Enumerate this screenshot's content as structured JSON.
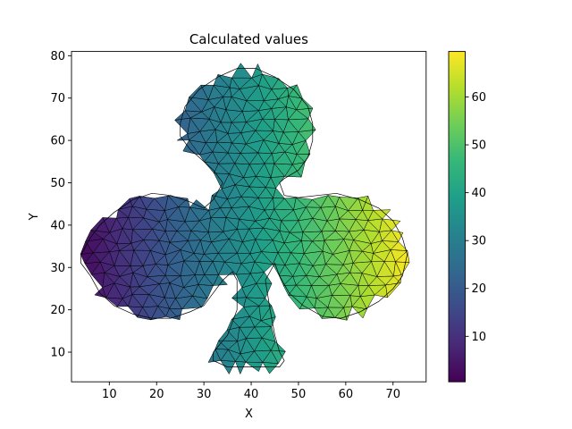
{
  "chart_data": {
    "type": "heatmap",
    "plot_kind": "triangulated mesh (tripcolor) with triangle edges",
    "title": "Calculated values",
    "xlabel": "X",
    "ylabel": "Y",
    "xlim": [
      2,
      77
    ],
    "ylim": [
      3,
      81
    ],
    "xticks": [
      10,
      20,
      30,
      40,
      50,
      60,
      70
    ],
    "yticks": [
      10,
      20,
      30,
      40,
      50,
      60,
      70,
      80
    ],
    "colorbar": {
      "cmap": "viridis",
      "range": [
        0.5,
        69.5
      ],
      "ticks": [
        10,
        20,
        30,
        40,
        50,
        60
      ]
    },
    "value_field": "value increases roughly linearly with X (about 0.8 at X=3 up to about 69 at X=73)",
    "shape_boundary": [
      [
        4,
        33
      ],
      [
        6,
        37
      ],
      [
        8,
        40
      ],
      [
        11,
        43
      ],
      [
        15,
        46
      ],
      [
        19,
        47.5
      ],
      [
        23,
        47
      ],
      [
        27,
        45.5
      ],
      [
        30,
        44
      ],
      [
        32,
        46
      ],
      [
        34,
        50
      ],
      [
        32,
        53
      ],
      [
        30,
        55
      ],
      [
        27,
        58
      ],
      [
        25,
        61
      ],
      [
        25,
        64
      ],
      [
        26,
        68
      ],
      [
        29,
        72
      ],
      [
        33,
        75
      ],
      [
        37,
        77
      ],
      [
        41,
        77
      ],
      [
        45,
        75
      ],
      [
        49,
        72
      ],
      [
        52,
        68
      ],
      [
        53,
        64
      ],
      [
        53,
        60
      ],
      [
        52,
        56
      ],
      [
        50,
        53
      ],
      [
        47,
        51
      ],
      [
        46,
        50
      ],
      [
        47,
        47
      ],
      [
        50,
        46.5
      ],
      [
        54,
        47
      ],
      [
        58,
        47.5
      ],
      [
        63,
        46
      ],
      [
        67,
        44
      ],
      [
        70,
        41
      ],
      [
        72,
        37
      ],
      [
        73,
        33
      ],
      [
        72,
        28
      ],
      [
        70,
        25
      ],
      [
        67,
        22
      ],
      [
        63,
        19.5
      ],
      [
        59,
        18
      ],
      [
        55,
        18.5
      ],
      [
        51,
        21
      ],
      [
        48,
        24
      ],
      [
        46,
        28
      ],
      [
        45,
        31
      ],
      [
        44,
        29
      ],
      [
        43,
        27
      ],
      [
        44,
        20
      ],
      [
        45,
        14
      ],
      [
        46,
        10
      ],
      [
        47,
        8
      ],
      [
        46,
        6.5
      ],
      [
        39,
        6.5
      ],
      [
        35,
        6.5
      ],
      [
        32,
        8
      ],
      [
        32,
        10
      ],
      [
        35,
        14
      ],
      [
        37,
        20
      ],
      [
        37,
        27
      ],
      [
        36,
        29
      ],
      [
        34,
        27
      ],
      [
        32,
        24
      ],
      [
        30,
        21
      ],
      [
        27,
        19.5
      ],
      [
        23,
        18
      ],
      [
        19,
        18
      ],
      [
        15,
        19
      ],
      [
        11,
        21
      ],
      [
        8,
        24
      ],
      [
        6,
        28
      ],
      [
        4,
        31
      ]
    ]
  }
}
